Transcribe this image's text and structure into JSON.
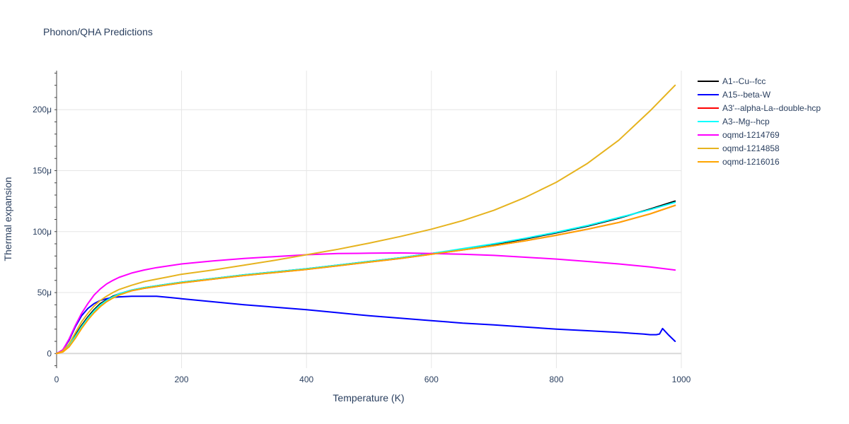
{
  "chart_data": {
    "type": "line",
    "title": "Phonon/QHA Predictions",
    "xlabel": "Temperature (K)",
    "ylabel": "Thermal expansion",
    "xlim": [
      0,
      1000
    ],
    "ylim": [
      -12,
      232
    ],
    "x_ticks": [
      0,
      200,
      400,
      600,
      800,
      1000
    ],
    "x_tick_labels": [
      "0",
      "200",
      "400",
      "600",
      "800",
      "1000"
    ],
    "y_ticks": [
      0,
      50,
      100,
      150,
      200
    ],
    "y_tick_labels": [
      "0",
      "50μ",
      "100μ",
      "150μ",
      "200μ"
    ],
    "y_unit_note": "values in units of 1e-6 (μ)",
    "grid": true,
    "legend_position": "right",
    "series": [
      {
        "name": "A1--Cu--fcc",
        "color": "#000000",
        "x": [
          0,
          10,
          20,
          30,
          40,
          50,
          60,
          70,
          80,
          90,
          100,
          120,
          140,
          160,
          180,
          200,
          250,
          300,
          350,
          400,
          450,
          500,
          550,
          600,
          650,
          700,
          750,
          800,
          850,
          900,
          950,
          990
        ],
        "y": [
          0,
          2,
          7,
          15,
          23,
          30,
          36,
          41,
          44,
          47,
          49,
          52,
          54,
          55.5,
          57,
          58.5,
          61.5,
          64.5,
          67,
          69.5,
          72.5,
          75.5,
          78.5,
          82,
          85.5,
          89.5,
          94,
          99,
          104.5,
          111,
          118.5,
          125
        ]
      },
      {
        "name": "A15--beta-W",
        "color": "#0000ff",
        "x": [
          0,
          10,
          20,
          30,
          40,
          50,
          60,
          70,
          80,
          90,
          100,
          120,
          140,
          160,
          180,
          200,
          250,
          300,
          350,
          400,
          450,
          500,
          550,
          600,
          650,
          700,
          750,
          800,
          850,
          900,
          940,
          950,
          960,
          965,
          970,
          980,
          990
        ],
        "y": [
          0,
          3,
          11,
          22,
          31,
          37,
          41,
          43.5,
          45,
          46,
          46.5,
          47,
          47,
          47,
          46,
          45,
          42.5,
          40,
          38,
          36,
          33.5,
          31,
          29,
          27,
          25,
          23.5,
          21.8,
          20,
          18.7,
          17.3,
          16,
          15.5,
          15.5,
          16,
          20.5,
          15,
          10
        ]
      },
      {
        "name": "A3'--alpha-La--double-hcp",
        "color": "#ff0000",
        "x": [
          0,
          10,
          20,
          30,
          40,
          50,
          60,
          70,
          80,
          90,
          100,
          120,
          140,
          160,
          180,
          200,
          250,
          300,
          350,
          400,
          450,
          500,
          550,
          600,
          650,
          700,
          750,
          800,
          850,
          900,
          950,
          990
        ],
        "y": [
          0,
          1.5,
          6,
          13,
          21,
          28,
          34,
          39,
          43,
          46,
          48.5,
          51.5,
          53.5,
          55,
          56.5,
          58,
          61,
          64,
          66.5,
          69,
          72,
          75,
          78,
          81.5,
          85,
          88.5,
          92.5,
          97,
          102,
          107.5,
          114.5,
          121.5
        ]
      },
      {
        "name": "A3--Mg--hcp",
        "color": "#00ffff",
        "x": [
          0,
          10,
          20,
          30,
          40,
          50,
          60,
          70,
          80,
          90,
          100,
          120,
          140,
          160,
          180,
          200,
          250,
          300,
          350,
          400,
          450,
          500,
          550,
          600,
          650,
          700,
          750,
          800,
          850,
          900,
          950,
          990
        ],
        "y": [
          0,
          1.8,
          6.5,
          14,
          22,
          29,
          35,
          40,
          43.5,
          46.5,
          49,
          52,
          54,
          55.5,
          57,
          58.5,
          61.5,
          64.5,
          67,
          69.5,
          72.5,
          75.5,
          78.5,
          82,
          86,
          90,
          94.5,
          99.5,
          105,
          111.5,
          118,
          124
        ]
      },
      {
        "name": "oqmd-1214769",
        "color": "#ff00ff",
        "x": [
          0,
          10,
          20,
          30,
          40,
          50,
          60,
          70,
          80,
          90,
          100,
          120,
          140,
          160,
          180,
          200,
          250,
          300,
          350,
          400,
          450,
          500,
          550,
          600,
          650,
          700,
          750,
          800,
          850,
          900,
          950,
          990
        ],
        "y": [
          0,
          3,
          12,
          23,
          33,
          41,
          48,
          53,
          57,
          60,
          62.5,
          66,
          68.5,
          70.5,
          72,
          73.5,
          76,
          78,
          79.5,
          81,
          82,
          82.3,
          82.5,
          82,
          81.5,
          80.5,
          79,
          77.5,
          75.5,
          73.5,
          71,
          68.5
        ]
      },
      {
        "name": "oqmd-1214858",
        "color": "#e6b31e",
        "x": [
          0,
          10,
          20,
          30,
          40,
          50,
          60,
          70,
          80,
          90,
          100,
          120,
          140,
          160,
          180,
          200,
          250,
          300,
          350,
          400,
          450,
          500,
          550,
          600,
          650,
          700,
          750,
          800,
          850,
          900,
          950,
          990
        ],
        "y": [
          0,
          2,
          8,
          17,
          26,
          33,
          39,
          43.5,
          47,
          50,
          52.5,
          56,
          59,
          61,
          63,
          65,
          68.5,
          72.5,
          76.5,
          81,
          85.5,
          90.5,
          96,
          102,
          109,
          117.5,
          128,
          140.5,
          156,
          175,
          199,
          220
        ]
      },
      {
        "name": "oqmd-1216016",
        "color": "#ffa500",
        "x": [
          0,
          10,
          20,
          30,
          40,
          50,
          60,
          70,
          80,
          90,
          100,
          120,
          140,
          160,
          180,
          200,
          250,
          300,
          350,
          400,
          450,
          500,
          550,
          600,
          650,
          700,
          750,
          800,
          850,
          900,
          950,
          990
        ],
        "y": [
          0,
          1.2,
          5.5,
          12.5,
          20.5,
          27.5,
          33.5,
          38.5,
          42.5,
          45.5,
          48,
          51.5,
          53.5,
          55,
          56.5,
          58,
          61,
          64,
          66.5,
          69,
          72,
          75,
          78,
          81.5,
          85,
          88.5,
          92.5,
          97,
          102,
          107.5,
          114.5,
          121.5
        ]
      }
    ]
  }
}
